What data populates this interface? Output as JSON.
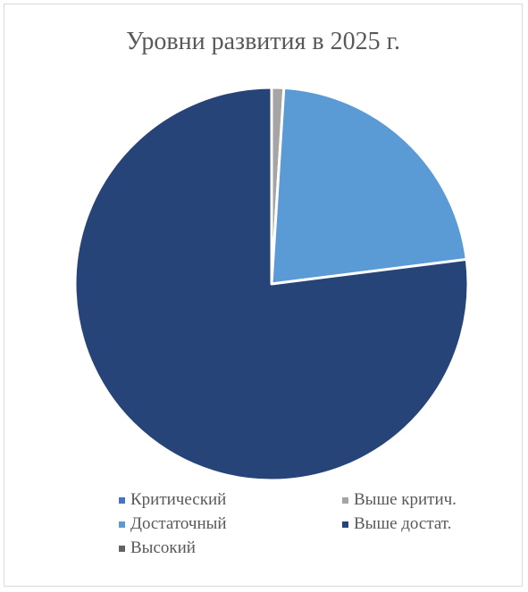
{
  "chart_data": {
    "type": "pie",
    "title": "Уровни развития в 2025 г.",
    "categories": [
      "Критический",
      "Выше критич.",
      "Достаточный",
      "Выше достат.",
      "Высокий"
    ],
    "values": [
      0,
      1,
      22,
      77,
      0
    ],
    "colors": [
      "#4472c4",
      "#a5a5a5",
      "#5b9bd5",
      "#264478",
      "#636363"
    ],
    "legend_position": "bottom"
  }
}
